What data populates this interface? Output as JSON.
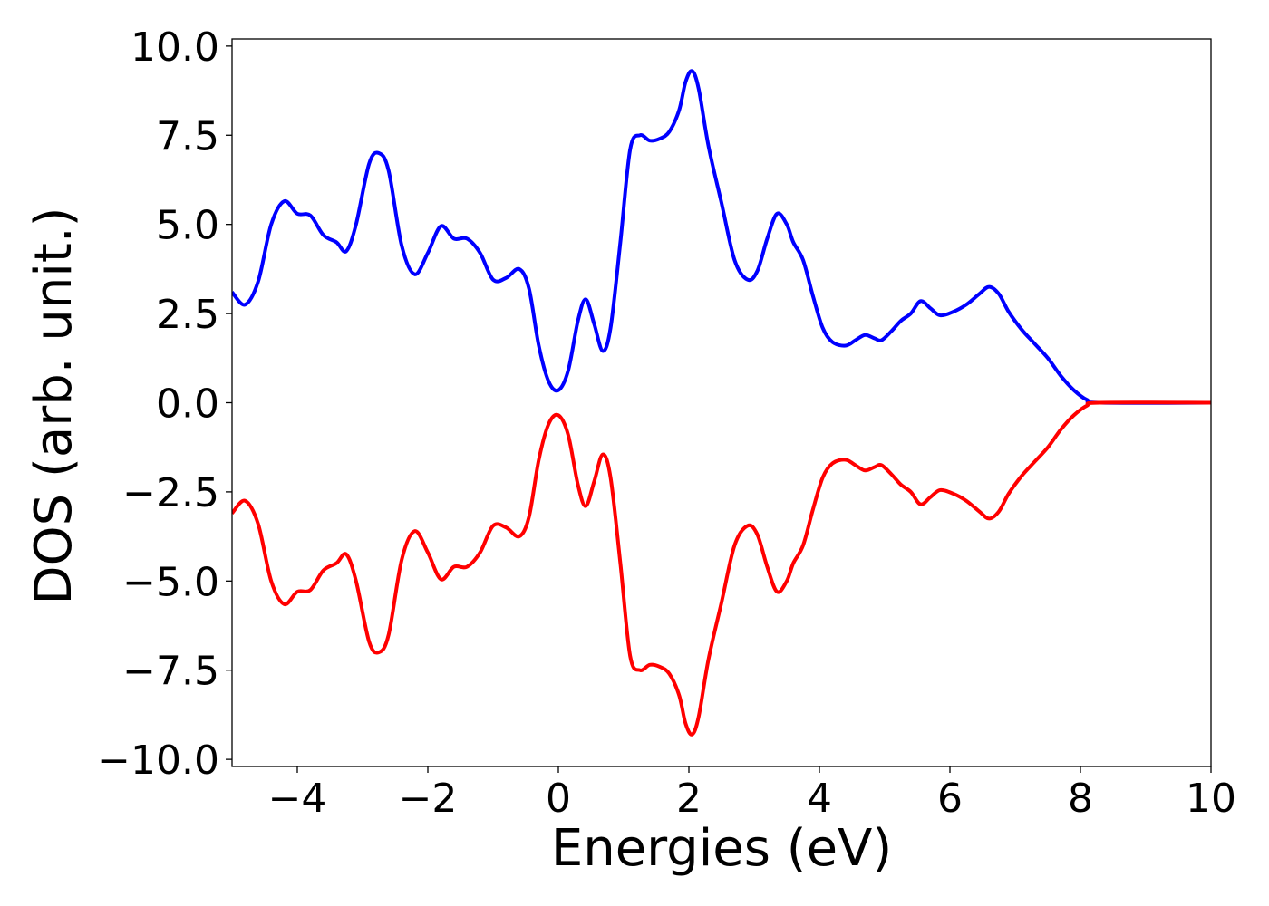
{
  "chart_data": {
    "type": "line",
    "xlabel": "Energies (eV)",
    "ylabel": "DOS (arb. unit.)",
    "xlim": [
      -5,
      10
    ],
    "ylim": [
      -10.2,
      10.2
    ],
    "xticks": [
      -4,
      -2,
      0,
      2,
      4,
      6,
      8,
      10
    ],
    "xtick_labels": [
      "−4",
      "−2",
      "0",
      "2",
      "4",
      "6",
      "8",
      "10"
    ],
    "yticks": [
      10.0,
      7.5,
      5.0,
      2.5,
      0.0,
      -2.5,
      -5.0,
      -7.5,
      -10.0
    ],
    "ytick_labels": [
      "10.0",
      "7.5",
      "5.0",
      "2.5",
      "0.0",
      "−2.5",
      "−5.0",
      "−7.5",
      "−10.0"
    ],
    "grid": false,
    "legend": "none",
    "series": [
      {
        "color": "#0000ff",
        "points": [
          [
            -5.0,
            3.1
          ],
          [
            -4.8,
            2.75
          ],
          [
            -4.6,
            3.4
          ],
          [
            -4.4,
            5.0
          ],
          [
            -4.2,
            5.65
          ],
          [
            -4.0,
            5.3
          ],
          [
            -3.8,
            5.25
          ],
          [
            -3.6,
            4.7
          ],
          [
            -3.4,
            4.5
          ],
          [
            -3.25,
            4.25
          ],
          [
            -3.1,
            5.0
          ],
          [
            -2.9,
            6.7
          ],
          [
            -2.75,
            7.0
          ],
          [
            -2.6,
            6.5
          ],
          [
            -2.4,
            4.4
          ],
          [
            -2.2,
            3.6
          ],
          [
            -2.0,
            4.2
          ],
          [
            -1.8,
            4.95
          ],
          [
            -1.6,
            4.6
          ],
          [
            -1.4,
            4.6
          ],
          [
            -1.2,
            4.2
          ],
          [
            -1.0,
            3.45
          ],
          [
            -0.8,
            3.5
          ],
          [
            -0.6,
            3.75
          ],
          [
            -0.45,
            3.2
          ],
          [
            -0.3,
            1.6
          ],
          [
            -0.15,
            0.6
          ],
          [
            0.0,
            0.35
          ],
          [
            0.15,
            0.9
          ],
          [
            0.3,
            2.3
          ],
          [
            0.42,
            2.9
          ],
          [
            0.55,
            2.2
          ],
          [
            0.68,
            1.45
          ],
          [
            0.8,
            2.1
          ],
          [
            0.95,
            4.5
          ],
          [
            1.1,
            7.1
          ],
          [
            1.25,
            7.5
          ],
          [
            1.4,
            7.35
          ],
          [
            1.55,
            7.4
          ],
          [
            1.7,
            7.6
          ],
          [
            1.85,
            8.2
          ],
          [
            1.95,
            9.0
          ],
          [
            2.05,
            9.3
          ],
          [
            2.15,
            8.8
          ],
          [
            2.3,
            7.2
          ],
          [
            2.5,
            5.6
          ],
          [
            2.7,
            4.0
          ],
          [
            2.9,
            3.45
          ],
          [
            3.05,
            3.7
          ],
          [
            3.2,
            4.6
          ],
          [
            3.35,
            5.3
          ],
          [
            3.5,
            5.0
          ],
          [
            3.6,
            4.5
          ],
          [
            3.75,
            4.0
          ],
          [
            3.9,
            3.0
          ],
          [
            4.05,
            2.1
          ],
          [
            4.2,
            1.7
          ],
          [
            4.4,
            1.6
          ],
          [
            4.55,
            1.75
          ],
          [
            4.7,
            1.9
          ],
          [
            4.85,
            1.8
          ],
          [
            4.95,
            1.75
          ],
          [
            5.1,
            2.0
          ],
          [
            5.25,
            2.3
          ],
          [
            5.4,
            2.5
          ],
          [
            5.55,
            2.85
          ],
          [
            5.7,
            2.65
          ],
          [
            5.85,
            2.45
          ],
          [
            6.05,
            2.55
          ],
          [
            6.25,
            2.75
          ],
          [
            6.45,
            3.05
          ],
          [
            6.6,
            3.25
          ],
          [
            6.75,
            3.05
          ],
          [
            6.9,
            2.55
          ],
          [
            7.1,
            2.05
          ],
          [
            7.3,
            1.65
          ],
          [
            7.5,
            1.25
          ],
          [
            7.7,
            0.75
          ],
          [
            7.9,
            0.35
          ],
          [
            8.1,
            0.08
          ],
          [
            8.3,
            0.0
          ],
          [
            10.0,
            0.0
          ]
        ]
      },
      {
        "color": "#ff0000",
        "points": [
          [
            -5.0,
            -3.1
          ],
          [
            -4.8,
            -2.75
          ],
          [
            -4.6,
            -3.4
          ],
          [
            -4.4,
            -5.0
          ],
          [
            -4.2,
            -5.65
          ],
          [
            -4.0,
            -5.3
          ],
          [
            -3.8,
            -5.25
          ],
          [
            -3.6,
            -4.7
          ],
          [
            -3.4,
            -4.5
          ],
          [
            -3.25,
            -4.25
          ],
          [
            -3.1,
            -5.0
          ],
          [
            -2.9,
            -6.7
          ],
          [
            -2.75,
            -7.0
          ],
          [
            -2.6,
            -6.5
          ],
          [
            -2.4,
            -4.4
          ],
          [
            -2.2,
            -3.6
          ],
          [
            -2.0,
            -4.2
          ],
          [
            -1.8,
            -4.95
          ],
          [
            -1.6,
            -4.6
          ],
          [
            -1.4,
            -4.6
          ],
          [
            -1.2,
            -4.2
          ],
          [
            -1.0,
            -3.45
          ],
          [
            -0.8,
            -3.5
          ],
          [
            -0.6,
            -3.75
          ],
          [
            -0.45,
            -3.2
          ],
          [
            -0.3,
            -1.6
          ],
          [
            -0.15,
            -0.6
          ],
          [
            0.0,
            -0.35
          ],
          [
            0.15,
            -0.9
          ],
          [
            0.3,
            -2.3
          ],
          [
            0.42,
            -2.9
          ],
          [
            0.55,
            -2.2
          ],
          [
            0.68,
            -1.45
          ],
          [
            0.8,
            -2.1
          ],
          [
            0.95,
            -4.5
          ],
          [
            1.1,
            -7.1
          ],
          [
            1.25,
            -7.5
          ],
          [
            1.4,
            -7.35
          ],
          [
            1.55,
            -7.4
          ],
          [
            1.7,
            -7.6
          ],
          [
            1.85,
            -8.2
          ],
          [
            1.95,
            -9.0
          ],
          [
            2.05,
            -9.3
          ],
          [
            2.15,
            -8.8
          ],
          [
            2.3,
            -7.2
          ],
          [
            2.5,
            -5.6
          ],
          [
            2.7,
            -4.0
          ],
          [
            2.9,
            -3.45
          ],
          [
            3.05,
            -3.7
          ],
          [
            3.2,
            -4.6
          ],
          [
            3.35,
            -5.3
          ],
          [
            3.5,
            -5.0
          ],
          [
            3.6,
            -4.5
          ],
          [
            3.75,
            -4.0
          ],
          [
            3.9,
            -3.0
          ],
          [
            4.05,
            -2.1
          ],
          [
            4.2,
            -1.7
          ],
          [
            4.4,
            -1.6
          ],
          [
            4.55,
            -1.75
          ],
          [
            4.7,
            -1.9
          ],
          [
            4.85,
            -1.8
          ],
          [
            4.95,
            -1.75
          ],
          [
            5.1,
            -2.0
          ],
          [
            5.25,
            -2.3
          ],
          [
            5.4,
            -2.5
          ],
          [
            5.55,
            -2.85
          ],
          [
            5.7,
            -2.65
          ],
          [
            5.85,
            -2.45
          ],
          [
            6.05,
            -2.55
          ],
          [
            6.25,
            -2.75
          ],
          [
            6.45,
            -3.05
          ],
          [
            6.6,
            -3.25
          ],
          [
            6.75,
            -3.05
          ],
          [
            6.9,
            -2.55
          ],
          [
            7.1,
            -2.05
          ],
          [
            7.3,
            -1.65
          ],
          [
            7.5,
            -1.25
          ],
          [
            7.7,
            -0.75
          ],
          [
            7.9,
            -0.35
          ],
          [
            8.1,
            -0.08
          ],
          [
            8.3,
            0.0
          ],
          [
            10.0,
            0.0
          ]
        ]
      }
    ]
  }
}
